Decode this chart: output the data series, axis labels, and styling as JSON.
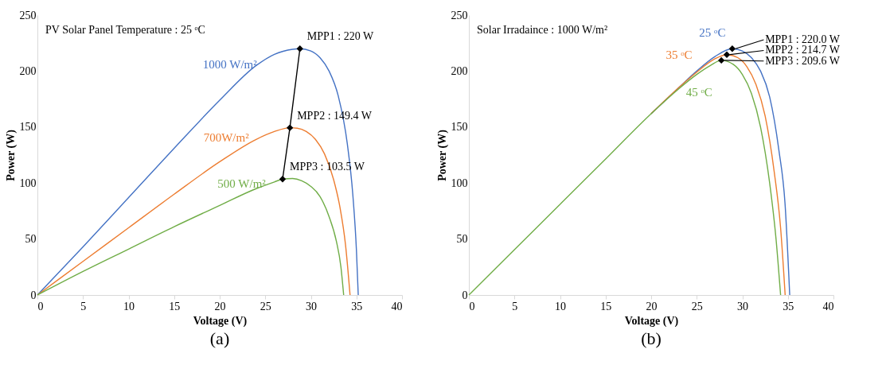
{
  "chart_data": [
    {
      "type": "line",
      "title": "(a)",
      "xlabel": "Voltage (V)",
      "ylabel": "Power (W)",
      "xlim": [
        0,
        40
      ],
      "ylim": [
        0,
        250
      ],
      "xticks": [
        0,
        5,
        10,
        15,
        20,
        25,
        30,
        35,
        40
      ],
      "yticks": [
        0,
        50,
        100,
        150,
        200,
        250
      ],
      "grid": false,
      "line_style": "solid",
      "series": [
        {
          "name": "1000 W/m²",
          "color": "#4472c4",
          "x": [
            0,
            5,
            10,
            15,
            20,
            24,
            26,
            28,
            28.8,
            30,
            31,
            32,
            33,
            34,
            34.6,
            35,
            35.2
          ],
          "values": [
            0,
            43,
            87,
            131,
            174,
            205,
            215,
            219.5,
            220,
            218,
            212,
            200,
            178,
            135,
            90,
            40,
            0
          ]
        },
        {
          "name": "700W/m²",
          "color": "#ed7d31",
          "x": [
            0,
            5,
            10,
            15,
            20,
            24,
            26,
            27.7,
            28.5,
            29.5,
            30.5,
            31.5,
            32.5,
            33.2,
            33.8,
            34.3
          ],
          "values": [
            0,
            30,
            60,
            90,
            119,
            139,
            146,
            149.4,
            149,
            146,
            139,
            126,
            103,
            78,
            45,
            0
          ]
        },
        {
          "name": "500 W/m²",
          "color": "#70ad47",
          "x": [
            0,
            5,
            10,
            15,
            20,
            24,
            26,
            26.9,
            28,
            29,
            30,
            31,
            32,
            32.8,
            33.3,
            33.6
          ],
          "values": [
            0,
            21,
            41,
            61,
            80,
            95,
            101,
            103.5,
            104,
            102,
            97,
            88,
            70,
            48,
            25,
            0
          ]
        },
        {
          "type": "line",
          "color": "#000000",
          "marker": "diamond",
          "x": [
            28.8,
            27.7,
            26.9
          ],
          "values": [
            220,
            149.4,
            103.5
          ]
        }
      ],
      "annotations": [
        {
          "text": "MPP1 : 220 W",
          "x": 28.8,
          "y": 220
        },
        {
          "text": "MPP2 : 149.4 W",
          "x": 27.7,
          "y": 149.4
        },
        {
          "text": "MPP3 : 103.5 W",
          "x": 26.9,
          "y": 103.5
        },
        "PV Solar Panel Temperature : 25 ᵒC"
      ]
    },
    {
      "type": "line",
      "title": "(b)",
      "xlabel": "Voltage (V)",
      "ylabel": "Power (W)",
      "xlim": [
        0,
        40
      ],
      "ylim": [
        0,
        250
      ],
      "xticks": [
        0,
        5,
        10,
        15,
        20,
        25,
        30,
        35,
        40
      ],
      "yticks": [
        0,
        50,
        100,
        150,
        200,
        250
      ],
      "grid": false,
      "line_style": "solid",
      "series": [
        {
          "name": "25 ᵒC",
          "color": "#4472c4",
          "x": [
            20,
            23,
            25,
            27,
            28.9,
            30,
            31,
            32,
            33,
            34,
            34.7,
            35.2
          ],
          "values": [
            162,
            185,
            200,
            213,
            220,
            218,
            212,
            200,
            177,
            130,
            80,
            0
          ]
        },
        {
          "name": "35 ᵒC",
          "color": "#ed7d31",
          "x": [
            20,
            23,
            25,
            27,
            28.3,
            29.5,
            30.5,
            31.5,
            32.5,
            33.5,
            34.2,
            34.7
          ],
          "values": [
            162,
            185,
            199,
            211,
            214.7,
            212,
            204,
            188,
            160,
            110,
            60,
            0
          ]
        },
        {
          "name": "45 ᵒC",
          "color": "#70ad47",
          "x": [
            0,
            5,
            10,
            15,
            20,
            23,
            25,
            26.5,
            27.7,
            29,
            30,
            31,
            32,
            33,
            33.7,
            34.2
          ],
          "values": [
            0,
            40.5,
            81,
            121.5,
            162,
            184,
            197,
            205,
            209.6,
            206,
            197,
            180,
            150,
            100,
            50,
            0
          ]
        },
        {
          "type": "scatter",
          "color": "#000000",
          "marker": "diamond",
          "x": [
            28.9,
            28.3,
            27.7
          ],
          "values": [
            220,
            214.7,
            209.6
          ]
        }
      ],
      "annotations": [
        {
          "text": "MPP1 : 220.0 W",
          "x": 28.9,
          "y": 220
        },
        {
          "text": "MPP2 : 214.7 W",
          "x": 28.3,
          "y": 214.7
        },
        {
          "text": "MPP3 : 209.6 W",
          "x": 27.7,
          "y": 209.6
        },
        "Solar Irradaince : 1000 W/m²"
      ]
    }
  ]
}
